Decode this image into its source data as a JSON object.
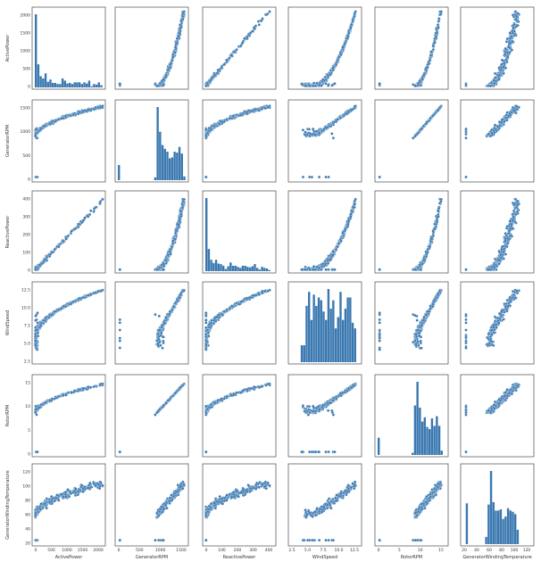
{
  "chart_data": {
    "type": "scatter",
    "kind": "pairplot",
    "variables": [
      "ActivePower",
      "GeneratorRPM",
      "ReactivePower",
      "WindSpeed",
      "RotorRPM",
      "GeneratorWindingTemperature"
    ],
    "axis_labels": [
      "ActivePower",
      "GeneratorRPM",
      "ReactivePower",
      "WindSpeed",
      "RotorRPM",
      "GeneratorWindingTemperature"
    ],
    "ranges": [
      [
        0,
        2000
      ],
      [
        0,
        1800
      ],
      [
        0,
        400
      ],
      [
        0,
        12.5
      ],
      [
        0,
        17
      ],
      [
        0,
        130
      ]
    ],
    "ticks": [
      [
        "0",
        "500",
        "1000",
        "1500",
        "2000"
      ],
      [
        "0",
        "500",
        "1000",
        "1500"
      ],
      [
        "0",
        "100",
        "200",
        "300",
        "400"
      ],
      [
        "2.5",
        "5.0",
        "7.5",
        "10.0",
        "12.5"
      ],
      [
        "0",
        "5",
        "10",
        "15"
      ],
      [
        "20",
        "40",
        "60",
        "80",
        "100",
        "120"
      ]
    ],
    "diagonal": "histogram",
    "off_diagonal": "scatter",
    "color": "#3a78b0",
    "grid": false,
    "legend": "none"
  }
}
